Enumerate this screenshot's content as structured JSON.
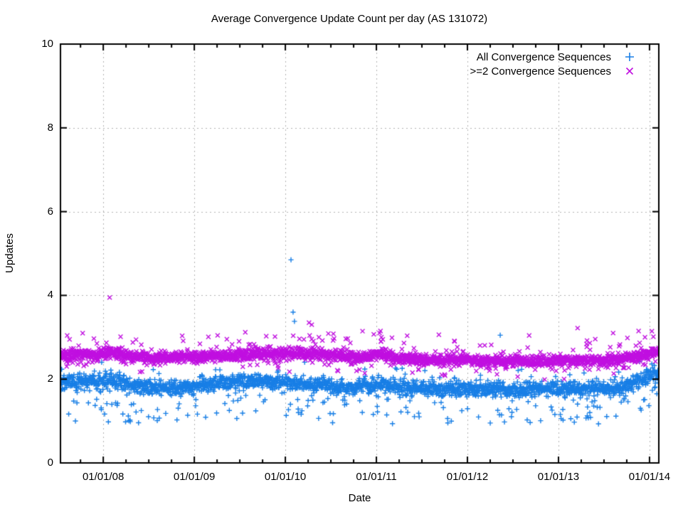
{
  "chart_data": {
    "type": "scatter",
    "title": "Average Convergence Update Count per day (AS 131072)",
    "xlabel": "Date",
    "ylabel": "Updates",
    "grid": "dotted",
    "legend_position": "top-right-inside",
    "axes": {
      "x": {
        "min": 2007.53,
        "max": 2014.102,
        "major_ticks": [
          {
            "t": 2008,
            "label": "01/01/08"
          },
          {
            "t": 2009,
            "label": "01/01/09"
          },
          {
            "t": 2010,
            "label": "01/01/10"
          },
          {
            "t": 2011,
            "label": "01/01/11"
          },
          {
            "t": 2012,
            "label": "01/01/12"
          },
          {
            "t": 2013,
            "label": "01/01/13"
          },
          {
            "t": 2014,
            "label": "01/01/14"
          }
        ],
        "minor_step": 0.25
      },
      "y": {
        "min": 0,
        "max": 10,
        "ticks": [
          0,
          2,
          4,
          6,
          8,
          10
        ]
      }
    },
    "sampling": {
      "start": 2007.53,
      "end": 2014.1,
      "points_per_year": 365
    },
    "series": [
      {
        "name": "All Convergence Sequences",
        "marker": "plus",
        "color": "#187fe6",
        "seed": 1234,
        "noise_sd": 0.09,
        "band_mean_points": [
          [
            2007.53,
            1.92
          ],
          [
            2008.0,
            1.95
          ],
          [
            2008.2,
            1.9
          ],
          [
            2008.5,
            1.8
          ],
          [
            2008.8,
            1.78
          ],
          [
            2009.0,
            1.85
          ],
          [
            2009.3,
            1.92
          ],
          [
            2009.6,
            1.95
          ],
          [
            2010.0,
            1.93
          ],
          [
            2010.4,
            1.85
          ],
          [
            2010.6,
            1.78
          ],
          [
            2010.9,
            1.85
          ],
          [
            2011.1,
            1.85
          ],
          [
            2011.4,
            1.78
          ],
          [
            2011.8,
            1.75
          ],
          [
            2012.1,
            1.78
          ],
          [
            2012.5,
            1.72
          ],
          [
            2012.9,
            1.78
          ],
          [
            2013.2,
            1.78
          ],
          [
            2013.5,
            1.75
          ],
          [
            2013.8,
            1.85
          ],
          [
            2014.0,
            2.1
          ],
          [
            2014.1,
            2.15
          ]
        ],
        "low_tail": {
          "prob": 0.075,
          "min": 0.25,
          "span": 0.6
        },
        "up_tail": {
          "prob": 0.02,
          "min": 0.1,
          "span": 0.35
        },
        "outliers": [
          [
            2010.062,
            4.85
          ],
          [
            2010.085,
            3.6
          ],
          [
            2010.1,
            3.38
          ],
          [
            2012.36,
            3.05
          ],
          [
            2011.06,
            2.7
          ]
        ]
      },
      {
        "name": ">=2 Convergence Sequences",
        "marker": "cross",
        "color": "#c010e0",
        "seed": 5678,
        "noise_sd": 0.07,
        "band_mean_points": [
          [
            2007.53,
            2.57
          ],
          [
            2007.9,
            2.58
          ],
          [
            2008.1,
            2.65
          ],
          [
            2008.3,
            2.55
          ],
          [
            2008.6,
            2.5
          ],
          [
            2009.0,
            2.53
          ],
          [
            2009.4,
            2.57
          ],
          [
            2009.8,
            2.6
          ],
          [
            2010.1,
            2.62
          ],
          [
            2010.5,
            2.58
          ],
          [
            2010.9,
            2.52
          ],
          [
            2011.05,
            2.62
          ],
          [
            2011.2,
            2.5
          ],
          [
            2011.5,
            2.47
          ],
          [
            2012.0,
            2.45
          ],
          [
            2012.5,
            2.42
          ],
          [
            2013.0,
            2.44
          ],
          [
            2013.5,
            2.45
          ],
          [
            2013.8,
            2.5
          ],
          [
            2014.0,
            2.6
          ],
          [
            2014.1,
            2.65
          ]
        ],
        "low_tail": {
          "prob": 0.03,
          "min": 0.1,
          "span": 0.3
        },
        "up_tail": {
          "prob": 0.035,
          "min": 0.1,
          "span": 0.45
        },
        "outliers": [
          [
            2008.07,
            3.95
          ],
          [
            2007.63,
            2.95
          ],
          [
            2009.56,
            3.12
          ],
          [
            2010.26,
            3.35
          ],
          [
            2010.29,
            3.3
          ],
          [
            2011.035,
            3.1
          ],
          [
            2011.045,
            3.15
          ],
          [
            2011.055,
            3.0
          ],
          [
            2011.05,
            2.9
          ],
          [
            2011.07,
            2.95
          ],
          [
            2013.21,
            3.22
          ],
          [
            2013.6,
            3.1
          ],
          [
            2013.88,
            3.15
          ],
          [
            2013.95,
            3.0
          ]
        ]
      }
    ],
    "style": {
      "grid_color": "#b3b3b3",
      "frame_color": "#000000",
      "background": "#ffffff"
    }
  }
}
